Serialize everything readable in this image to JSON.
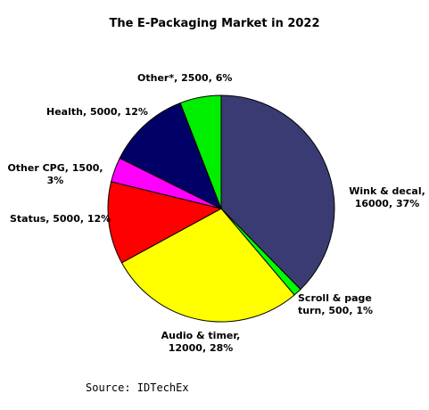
{
  "chart_data": {
    "type": "pie",
    "title": "The E-Packaging Market in 2022",
    "slices": [
      {
        "label_lines": [
          "Wink & decal,",
          "16000, 37%"
        ],
        "category": "Wink & decal",
        "value": 16000,
        "percent": 37,
        "color": "#3b3b73"
      },
      {
        "label_lines": [
          "Scroll & page",
          "turn, 500, 1%"
        ],
        "category": "Scroll & page turn",
        "value": 500,
        "percent": 1,
        "color": "#00ff00"
      },
      {
        "label_lines": [
          "Audio & timer,",
          "12000, 28%"
        ],
        "category": "Audio & timer",
        "value": 12000,
        "percent": 28,
        "color": "#ffff00"
      },
      {
        "label_lines": [
          "Status, 5000, 12%"
        ],
        "category": "Status",
        "value": 5000,
        "percent": 12,
        "color": "#ff0000"
      },
      {
        "label_lines": [
          "Other CPG, 1500,",
          "3%"
        ],
        "category": "Other CPG",
        "value": 1500,
        "percent": 3,
        "color": "#ff00ff"
      },
      {
        "label_lines": [
          "Health, 5000, 12%"
        ],
        "category": "Health",
        "value": 5000,
        "percent": 12,
        "color": "#000066"
      },
      {
        "label_lines": [
          "Other*, 2500, 6%"
        ],
        "category": "Other*",
        "value": 2500,
        "percent": 6,
        "color": "#00ee00"
      }
    ],
    "start_angle_deg": 0,
    "direction": "clockwise",
    "legend": "none",
    "data_labels": "outside",
    "source": "Source: IDTechEx"
  }
}
